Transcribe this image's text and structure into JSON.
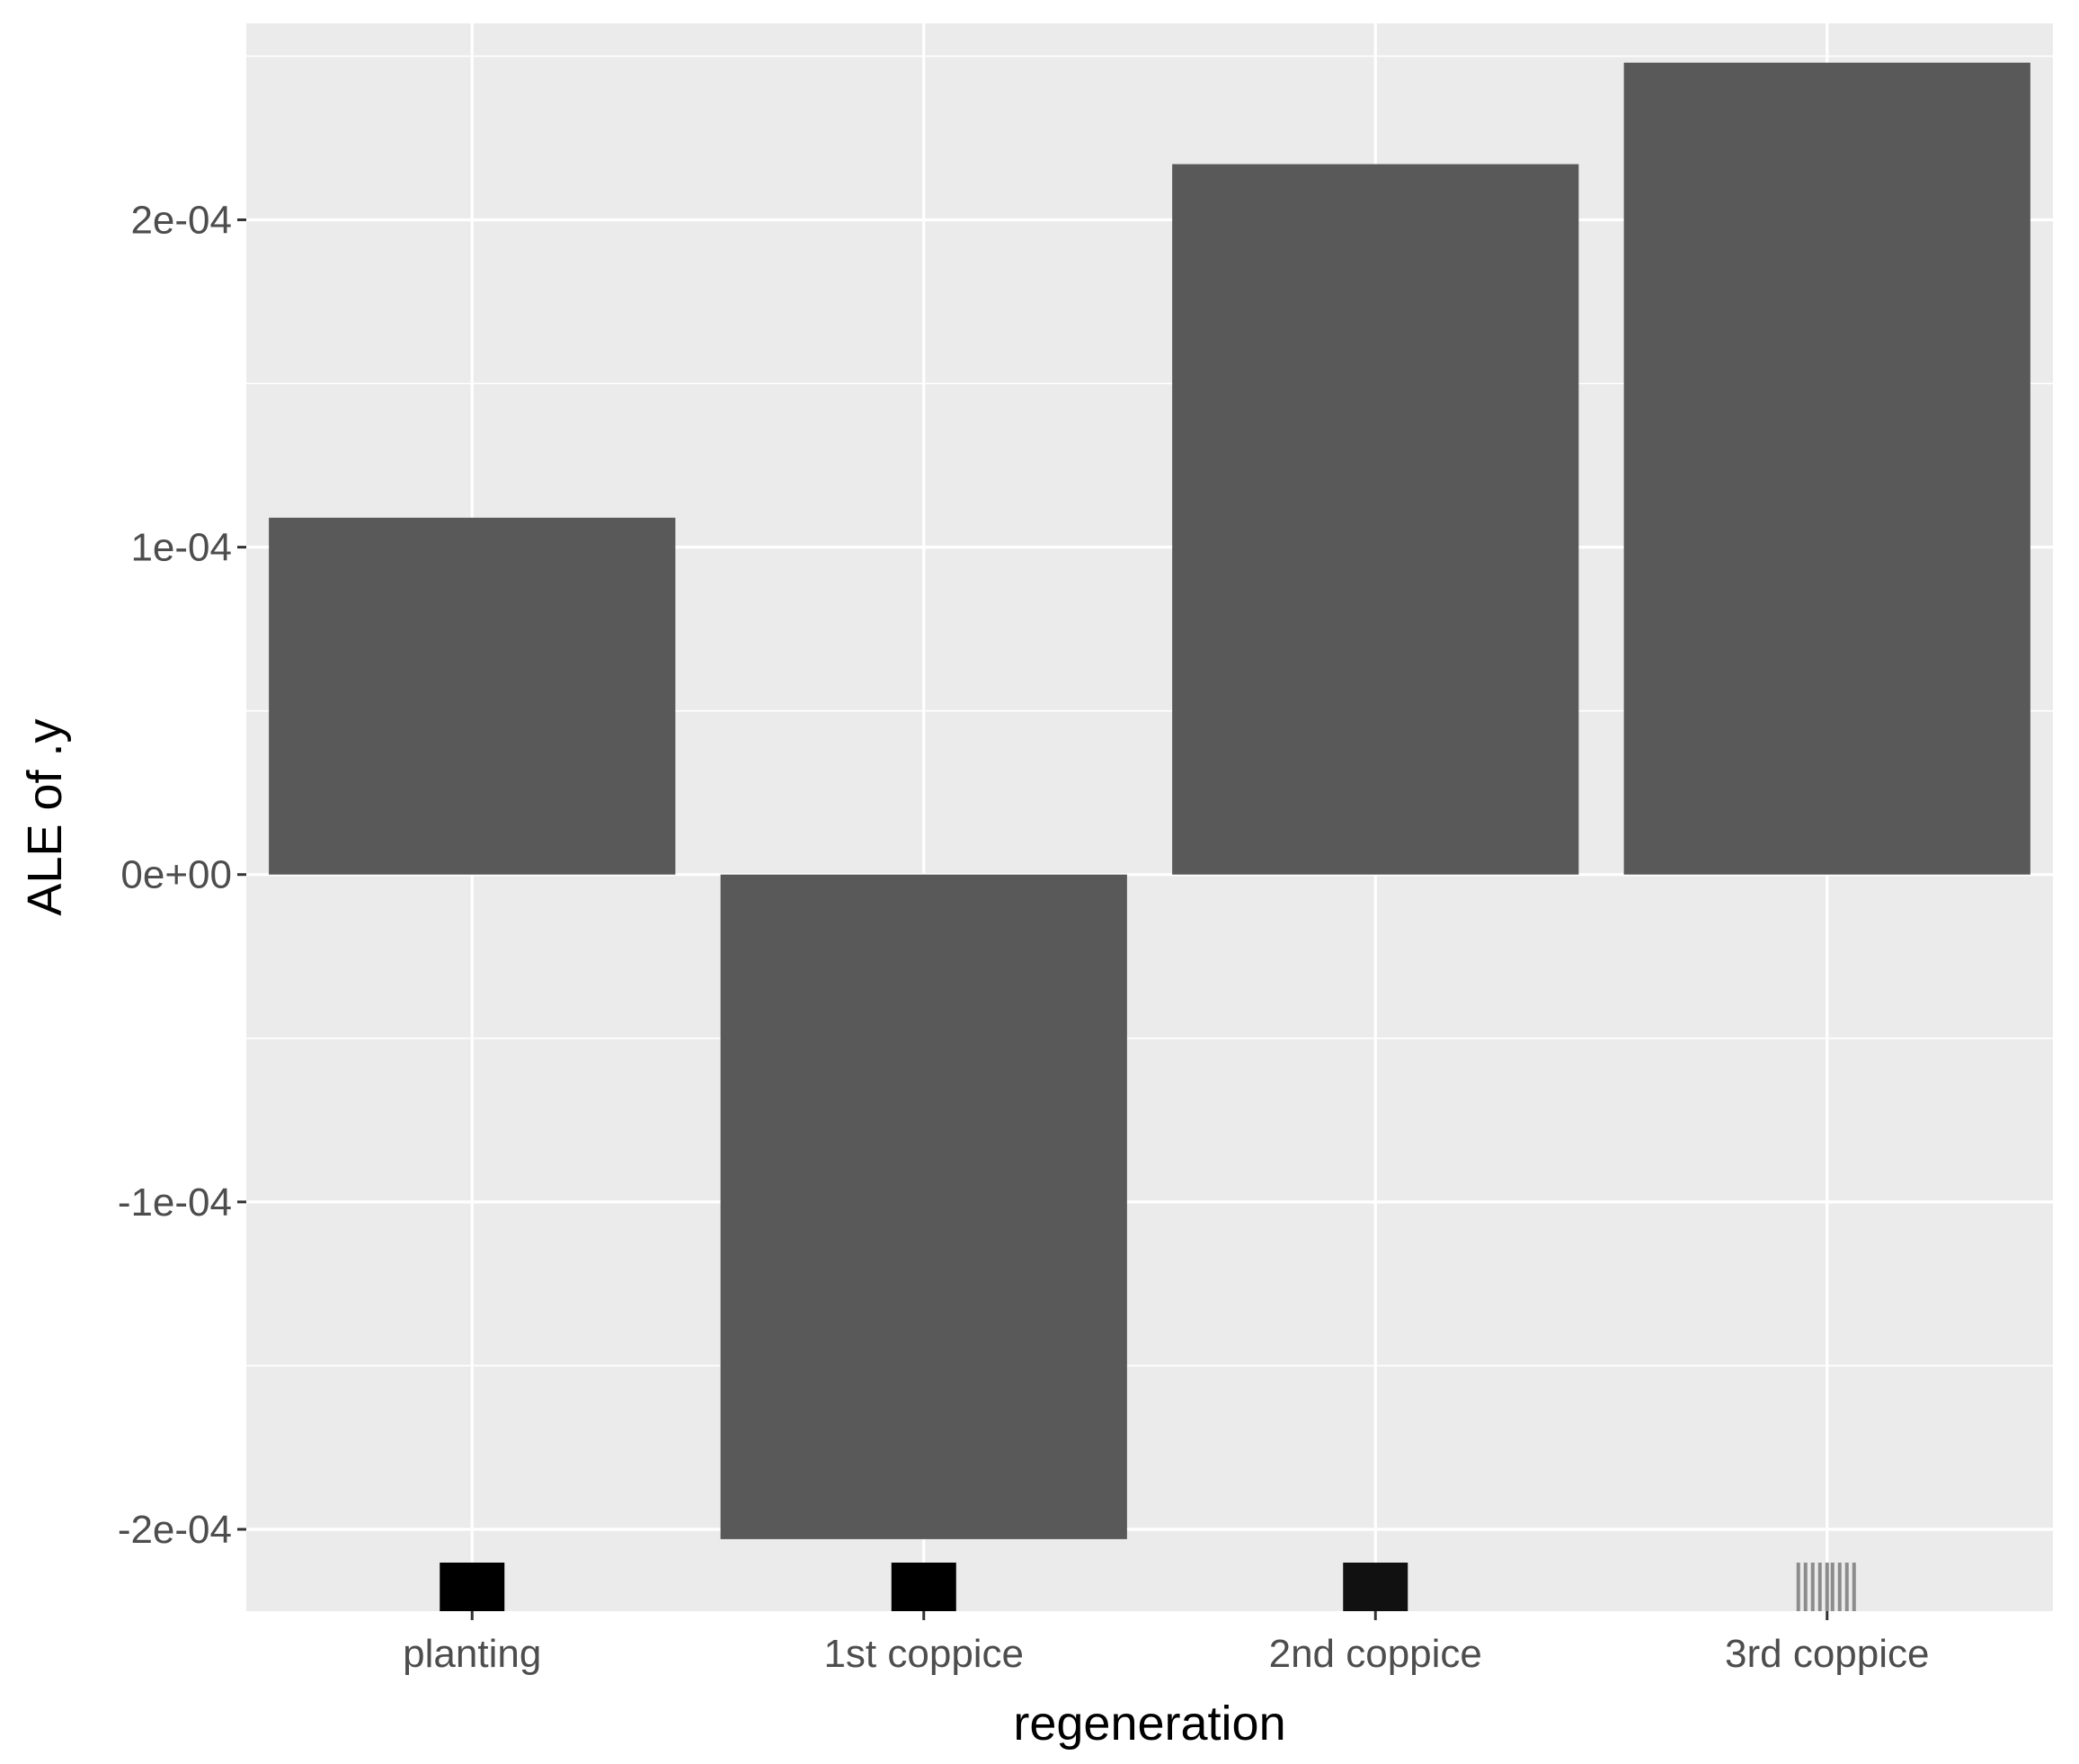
{
  "chart_data": {
    "type": "bar",
    "title": "",
    "xlabel": "regeneration",
    "ylabel": "ALE of .y",
    "categories": [
      "planting",
      "1st coppice",
      "2nd coppice",
      "3rd coppice"
    ],
    "values": [
      0.000109,
      -0.000203,
      0.000217,
      0.000248
    ],
    "ylim": [
      -0.000225,
      0.00026
    ],
    "yticks": [
      -0.0002,
      -0.0001,
      0,
      0.0001,
      0.0002
    ],
    "ytick_labels": [
      "-2e-04",
      "-1e-04",
      "0e+00",
      "1e-04",
      "2e-04"
    ],
    "grid": true,
    "legend": "none",
    "rug": [
      {
        "category": "planting",
        "shade": "#000000"
      },
      {
        "category": "1st coppice",
        "shade": "#000000"
      },
      {
        "category": "2nd coppice",
        "shade": "#111111"
      },
      {
        "category": "3rd coppice",
        "shade": "#8c8c8c"
      }
    ],
    "colors": {
      "panel_background": "#ebebeb",
      "grid_line": "#ffffff",
      "bar_fill": "#595959",
      "tick_label": "#4d4d4d",
      "axis_title": "#000000"
    }
  }
}
